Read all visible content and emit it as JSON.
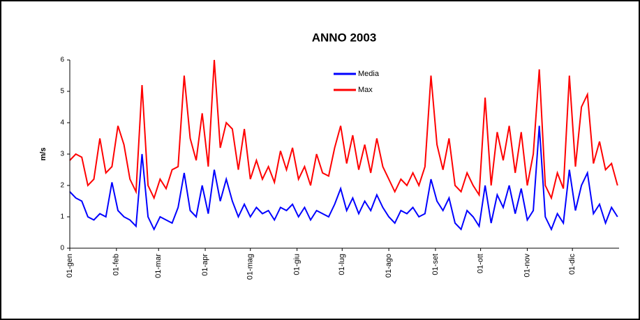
{
  "chart_data": {
    "type": "line",
    "title": "ANNO 2003",
    "y_label": "m/s",
    "x": [
      1,
      5,
      9,
      13,
      17,
      21,
      25,
      29,
      33,
      37,
      41,
      45,
      49,
      53,
      57,
      61,
      65,
      69,
      73,
      77,
      81,
      85,
      89,
      93,
      97,
      101,
      105,
      109,
      113,
      117,
      121,
      125,
      129,
      133,
      137,
      141,
      145,
      149,
      153,
      157,
      161,
      165,
      169,
      173,
      177,
      181,
      185,
      189,
      193,
      197,
      201,
      205,
      209,
      213,
      217,
      221,
      225,
      229,
      233,
      237,
      241,
      245,
      249,
      253,
      257,
      261,
      265,
      269,
      273,
      277,
      281,
      285,
      289,
      293,
      297,
      301,
      305,
      309,
      313,
      317,
      321,
      325,
      329,
      333,
      337,
      341,
      345,
      349,
      353,
      357,
      361,
      365
    ],
    "series": [
      {
        "name": "Media",
        "color": "#0000ff",
        "values": [
          1.8,
          1.6,
          1.5,
          1.0,
          0.9,
          1.1,
          1.0,
          2.1,
          1.2,
          1.0,
          0.9,
          0.7,
          3.0,
          1.0,
          0.6,
          1.0,
          0.9,
          0.8,
          1.3,
          2.4,
          1.2,
          1.0,
          2.0,
          1.1,
          2.5,
          1.5,
          2.2,
          1.5,
          1.0,
          1.4,
          1.0,
          1.3,
          1.1,
          1.2,
          0.9,
          1.3,
          1.2,
          1.4,
          1.0,
          1.3,
          0.9,
          1.2,
          1.1,
          1.0,
          1.4,
          1.9,
          1.2,
          1.6,
          1.1,
          1.5,
          1.2,
          1.7,
          1.3,
          1.0,
          0.8,
          1.2,
          1.1,
          1.3,
          1.0,
          1.1,
          2.2,
          1.5,
          1.2,
          1.6,
          0.8,
          0.6,
          1.2,
          1.0,
          0.7,
          2.0,
          0.8,
          1.7,
          1.3,
          2.0,
          1.1,
          1.9,
          0.9,
          1.2,
          3.9,
          1.0,
          0.6,
          1.1,
          0.8,
          2.5,
          1.2,
          2.0,
          2.4,
          1.1,
          1.4,
          0.8,
          1.3,
          1.0
        ]
      },
      {
        "name": "Max",
        "color": "#ff0000",
        "values": [
          2.8,
          3.0,
          2.9,
          2.0,
          2.2,
          3.5,
          2.4,
          2.6,
          3.9,
          3.3,
          2.2,
          1.8,
          5.2,
          2.0,
          1.6,
          2.2,
          1.9,
          2.5,
          2.6,
          5.5,
          3.5,
          2.8,
          4.3,
          2.6,
          6.0,
          3.2,
          4.0,
          3.8,
          2.5,
          3.8,
          2.2,
          2.8,
          2.2,
          2.6,
          2.1,
          3.1,
          2.5,
          3.2,
          2.2,
          2.6,
          2.0,
          3.0,
          2.4,
          2.3,
          3.2,
          3.9,
          2.7,
          3.6,
          2.5,
          3.3,
          2.4,
          3.5,
          2.6,
          2.2,
          1.8,
          2.2,
          2.0,
          2.4,
          2.0,
          2.6,
          5.5,
          3.3,
          2.5,
          3.5,
          2.0,
          1.8,
          2.4,
          2.0,
          1.7,
          4.8,
          2.0,
          3.7,
          2.8,
          3.9,
          2.4,
          3.7,
          2.0,
          3.0,
          5.7,
          2.0,
          1.6,
          2.4,
          1.9,
          5.5,
          2.6,
          4.5,
          4.9,
          2.7,
          3.4,
          2.5,
          2.7,
          2.0
        ]
      }
    ],
    "xlim": [
      1,
      366
    ],
    "xticks": [
      {
        "value": 1,
        "label": "01-gen"
      },
      {
        "value": 32,
        "label": "01-feb"
      },
      {
        "value": 60,
        "label": "01-mar"
      },
      {
        "value": 91,
        "label": "01-apr"
      },
      {
        "value": 121,
        "label": "01-mag"
      },
      {
        "value": 152,
        "label": "01-giu"
      },
      {
        "value": 182,
        "label": "01-lug"
      },
      {
        "value": 213,
        "label": "01-ago"
      },
      {
        "value": 244,
        "label": "01-set"
      },
      {
        "value": 274,
        "label": "01-ott"
      },
      {
        "value": 305,
        "label": "01-nov"
      },
      {
        "value": 335,
        "label": "01-dic"
      }
    ],
    "ylim": [
      0,
      6
    ],
    "yticks": [
      0,
      1,
      2,
      3,
      4,
      5,
      6
    ],
    "grid": false
  }
}
